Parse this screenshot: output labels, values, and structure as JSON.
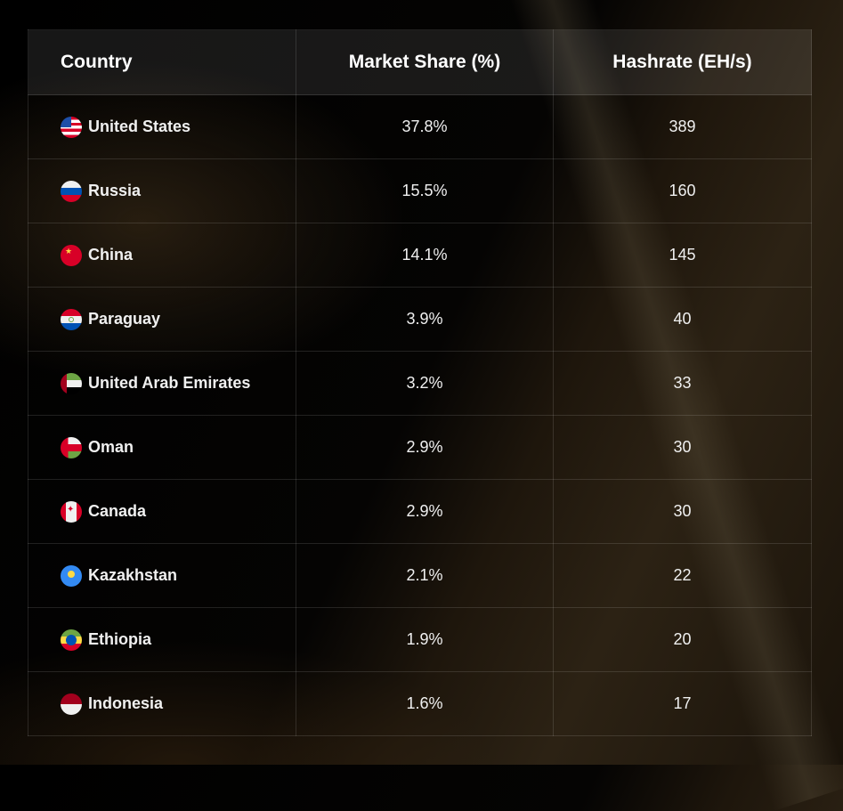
{
  "chart_data": {
    "type": "table",
    "columns": [
      "Country",
      "Market Share (%)",
      "Hashrate (EH/s)"
    ],
    "rows": [
      {
        "country": "United States",
        "flag": "us",
        "share": "37.8%",
        "hashrate": "389"
      },
      {
        "country": "Russia",
        "flag": "ru",
        "share": "15.5%",
        "hashrate": "160"
      },
      {
        "country": "China",
        "flag": "cn",
        "share": "14.1%",
        "hashrate": "145"
      },
      {
        "country": "Paraguay",
        "flag": "py",
        "share": "3.9%",
        "hashrate": "40"
      },
      {
        "country": "United Arab Emirates",
        "flag": "ae",
        "share": "3.2%",
        "hashrate": "33"
      },
      {
        "country": "Oman",
        "flag": "om",
        "share": "2.9%",
        "hashrate": "30"
      },
      {
        "country": "Canada",
        "flag": "ca",
        "share": "2.9%",
        "hashrate": "30"
      },
      {
        "country": "Kazakhstan",
        "flag": "kz",
        "share": "2.1%",
        "hashrate": "22"
      },
      {
        "country": "Ethiopia",
        "flag": "et",
        "share": "1.9%",
        "hashrate": "20"
      },
      {
        "country": "Indonesia",
        "flag": "id",
        "share": "1.6%",
        "hashrate": "17"
      }
    ]
  },
  "colors": {
    "background": "#000000",
    "accent": "#2c2214",
    "text": "#ffffff"
  }
}
